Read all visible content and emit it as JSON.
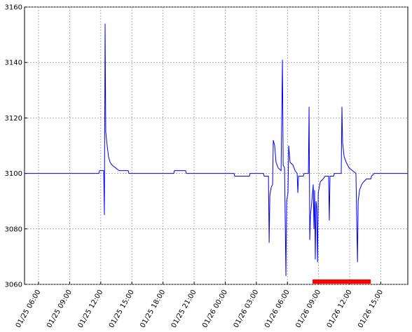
{
  "chart_data": {
    "type": "line",
    "x": [
      "01/25 04:39",
      "01/25 11:49",
      "01/25 11:53",
      "01/25 12:17",
      "01/25 12:21",
      "01/25 12:25",
      "01/25 12:29",
      "01/25 12:37",
      "01/25 12:45",
      "01/25 12:54",
      "01/25 13:06",
      "01/25 13:26",
      "01/25 13:46",
      "01/25 14:39",
      "01/25 14:43",
      "01/25 19:02",
      "01/25 19:06",
      "01/25 20:11",
      "01/25 20:15",
      "01/26 00:51",
      "01/26 00:55",
      "01/26 02:20",
      "01/26 02:24",
      "01/26 03:41",
      "01/26 03:45",
      "01/26 04:10",
      "01/26 04:14",
      "01/26 04:18",
      "01/26 04:26",
      "01/26 04:34",
      "01/26 04:38",
      "01/26 04:46",
      "01/26 04:54",
      "01/26 05:06",
      "01/26 05:23",
      "01/26 05:31",
      "01/26 05:35",
      "01/26 05:43",
      "01/26 05:51",
      "01/26 05:55",
      "01/26 06:03",
      "01/26 06:07",
      "01/26 06:15",
      "01/26 06:32",
      "01/26 06:44",
      "01/26 06:56",
      "01/26 07:00",
      "01/26 07:04",
      "01/26 07:32",
      "01/26 07:36",
      "01/26 08:01",
      "01/26 08:05",
      "01/26 08:09",
      "01/26 08:13",
      "01/26 08:21",
      "01/26 08:29",
      "01/26 08:33",
      "01/26 08:37",
      "01/26 08:41",
      "01/26 08:45",
      "01/26 08:49",
      "01/26 08:54",
      "01/26 08:58",
      "01/26 09:10",
      "01/26 09:26",
      "01/26 09:38",
      "01/26 09:58",
      "01/26 10:02",
      "01/26 10:06",
      "01/26 10:27",
      "01/26 10:31",
      "01/26 11:11",
      "01/26 11:15",
      "01/26 11:19",
      "01/26 11:28",
      "01/26 11:40",
      "01/26 11:56",
      "01/26 12:16",
      "01/26 12:36",
      "01/26 12:45",
      "01/26 12:49",
      "01/26 12:57",
      "01/26 13:09",
      "01/26 13:21",
      "01/26 13:37",
      "01/26 14:02",
      "01/26 14:06",
      "01/26 14:22",
      "01/26 17:36"
    ],
    "series": [
      {
        "color": "#0000ff",
        "values": [
          3100,
          3100,
          3101,
          3101,
          3085,
          3154,
          3115,
          3110,
          3106,
          3104,
          3103,
          3102,
          3101,
          3101,
          3100,
          3100,
          3101,
          3101,
          3100,
          3100,
          3099,
          3099,
          3100,
          3100,
          3099,
          3099,
          3075,
          3092,
          3095,
          3096,
          3112,
          3110,
          3104,
          3102,
          3101,
          3141,
          3103,
          3102,
          3063,
          3090,
          3093,
          3110,
          3104,
          3103,
          3101,
          3100,
          3093,
          3099,
          3099,
          3100,
          3100,
          3124,
          3076,
          3085,
          3090,
          3096,
          3080,
          3094,
          3069,
          3090,
          3088,
          3068,
          3093,
          3097,
          3098,
          3099,
          3099,
          3083,
          3099,
          3099,
          3100,
          3100,
          3124,
          3111,
          3106,
          3104,
          3102,
          3101,
          3100,
          3068,
          3090,
          3094,
          3096,
          3097,
          3098,
          3098,
          3099,
          3100,
          3100
        ]
      }
    ],
    "highlight": {
      "x": [
        "01/26 08:25",
        "01/26 14:02"
      ],
      "y": 3061,
      "color": "#ff0000"
    },
    "xlim": [
      "01/25 04:39",
      "01/26 17:36"
    ],
    "xticks": [
      "01/25 06:00",
      "01/25 09:00",
      "01/25 12:00",
      "01/25 15:00",
      "01/25 18:00",
      "01/25 21:00",
      "01/26 00:00",
      "01/26 03:00",
      "01/26 06:00",
      "01/26 09:00",
      "01/26 12:00",
      "01/26 15:00"
    ],
    "ylim": [
      3060,
      3160
    ],
    "yticks": [
      3060,
      3080,
      3100,
      3120,
      3140,
      3160
    ],
    "grid": true
  }
}
